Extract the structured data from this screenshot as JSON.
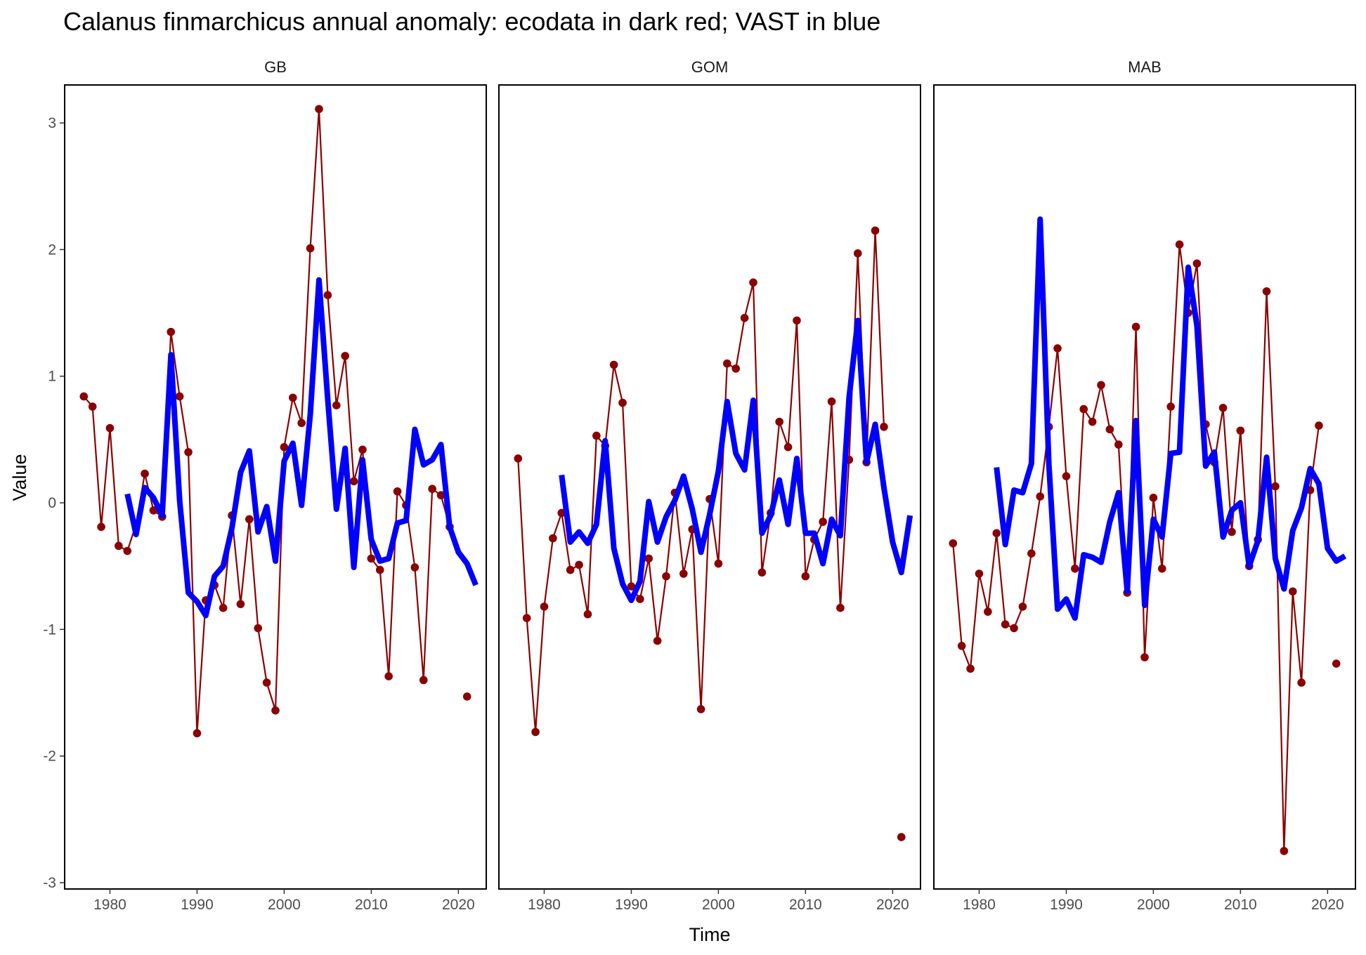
{
  "chart_data": {
    "type": "line",
    "title": "Calanus finmarchicus annual anomaly: ecodata in dark red; VAST in blue",
    "xlabel": "Time",
    "ylabel": "Value",
    "xlim": [
      1974.8,
      2023.2
    ],
    "ylim": [
      -3.05,
      3.3
    ],
    "xticks": [
      1980,
      1990,
      2000,
      2010,
      2020
    ],
    "yticks": [
      -3,
      -2,
      -1,
      0,
      1,
      2,
      3
    ],
    "grid": false,
    "colors": {
      "ecodata": "#8b0000",
      "vast": "#0000ff"
    },
    "panels": [
      {
        "name": "GB",
        "series": [
          {
            "kind": "ecodata",
            "x": [
              1977,
              1978,
              1979,
              1980,
              1981,
              1982,
              1983,
              1984,
              1985,
              1986,
              1987,
              1988,
              1989,
              1990,
              1991,
              1992,
              1993,
              1994,
              1995,
              1996,
              1997,
              1998,
              1999,
              2000,
              2001,
              2002,
              2003,
              2004,
              2005,
              2006,
              2007,
              2008,
              2009,
              2010,
              2011,
              2012,
              2013,
              2014,
              2015,
              2016,
              2017,
              2018,
              2019,
              2021
            ],
            "values": [
              0.84,
              0.76,
              -0.19,
              0.59,
              -0.34,
              -0.38,
              -0.17,
              0.23,
              -0.06,
              -0.11,
              1.35,
              0.84,
              0.4,
              -1.82,
              -0.77,
              -0.65,
              -0.83,
              -0.1,
              -0.8,
              -0.13,
              -0.99,
              -1.42,
              -1.64,
              0.44,
              0.83,
              0.63,
              2.01,
              3.11,
              1.64,
              0.77,
              1.16,
              0.17,
              0.42,
              -0.44,
              -0.53,
              -1.37,
              0.09,
              -0.02,
              -0.51,
              -1.4,
              0.11,
              0.06,
              -0.19,
              -1.53
            ]
          },
          {
            "kind": "vast",
            "x": [
              1982,
              1983,
              1984,
              1985,
              1986,
              1987,
              1988,
              1989,
              1990,
              1991,
              1992,
              1993,
              1994,
              1995,
              1996,
              1997,
              1998,
              1999,
              2000,
              2001,
              2002,
              2003,
              2004,
              2005,
              2006,
              2007,
              2008,
              2009,
              2010,
              2011,
              2012,
              2013,
              2014,
              2015,
              2016,
              2017,
              2018,
              2019,
              2020,
              2021,
              2022
            ],
            "values": [
              0.07,
              -0.25,
              0.12,
              0.04,
              -0.1,
              1.17,
              0.02,
              -0.71,
              -0.78,
              -0.89,
              -0.58,
              -0.5,
              -0.2,
              0.24,
              0.41,
              -0.23,
              -0.03,
              -0.46,
              0.33,
              0.47,
              -0.02,
              0.7,
              1.76,
              0.82,
              -0.05,
              0.43,
              -0.51,
              0.34,
              -0.29,
              -0.46,
              -0.44,
              -0.16,
              -0.14,
              0.58,
              0.3,
              0.34,
              0.46,
              -0.19,
              -0.39,
              -0.48,
              -0.65
            ]
          }
        ]
      },
      {
        "name": "GOM",
        "series": [
          {
            "kind": "ecodata",
            "x": [
              1977,
              1978,
              1979,
              1980,
              1981,
              1982,
              1983,
              1984,
              1985,
              1986,
              1987,
              1988,
              1989,
              1990,
              1991,
              1992,
              1993,
              1994,
              1995,
              1996,
              1997,
              1998,
              1999,
              2000,
              2001,
              2002,
              2003,
              2004,
              2005,
              2006,
              2007,
              2008,
              2009,
              2010,
              2011,
              2012,
              2013,
              2014,
              2015,
              2016,
              2017,
              2018,
              2019,
              2021
            ],
            "values": [
              0.35,
              -0.91,
              -1.81,
              -0.82,
              -0.28,
              -0.08,
              -0.53,
              -0.49,
              -0.88,
              0.53,
              0.45,
              1.09,
              0.79,
              -0.66,
              -0.76,
              -0.44,
              -1.09,
              -0.58,
              0.08,
              -0.56,
              -0.21,
              -1.63,
              0.03,
              -0.48,
              1.1,
              1.06,
              1.46,
              1.74,
              -0.55,
              -0.08,
              0.64,
              0.44,
              1.44,
              -0.58,
              -0.29,
              -0.15,
              0.8,
              -0.83,
              0.34,
              1.97,
              0.32,
              2.15,
              0.6,
              -2.64
            ]
          },
          {
            "kind": "vast",
            "x": [
              1982,
              1983,
              1984,
              1985,
              1986,
              1987,
              1988,
              1989,
              1990,
              1991,
              1992,
              1993,
              1994,
              1995,
              1996,
              1997,
              1998,
              1999,
              2000,
              2001,
              2002,
              2003,
              2004,
              2005,
              2006,
              2007,
              2008,
              2009,
              2010,
              2011,
              2012,
              2013,
              2014,
              2015,
              2016,
              2017,
              2018,
              2019,
              2020,
              2021,
              2022
            ],
            "values": [
              0.22,
              -0.31,
              -0.23,
              -0.32,
              -0.17,
              0.49,
              -0.36,
              -0.64,
              -0.77,
              -0.62,
              0.01,
              -0.31,
              -0.11,
              0.02,
              0.21,
              -0.05,
              -0.39,
              -0.09,
              0.25,
              0.8,
              0.39,
              0.26,
              0.81,
              -0.24,
              -0.1,
              0.18,
              -0.17,
              0.35,
              -0.24,
              -0.24,
              -0.48,
              -0.13,
              -0.26,
              0.83,
              1.44,
              0.32,
              0.62,
              0.12,
              -0.31,
              -0.55,
              -0.1
            ]
          }
        ]
      },
      {
        "name": "MAB",
        "series": [
          {
            "kind": "ecodata",
            "x": [
              1977,
              1978,
              1979,
              1980,
              1981,
              1982,
              1983,
              1984,
              1985,
              1986,
              1987,
              1988,
              1989,
              1990,
              1991,
              1992,
              1993,
              1994,
              1995,
              1996,
              1997,
              1998,
              1999,
              2000,
              2001,
              2002,
              2003,
              2004,
              2005,
              2006,
              2007,
              2008,
              2009,
              2010,
              2011,
              2012,
              2013,
              2014,
              2015,
              2016,
              2017,
              2018,
              2019,
              2021
            ],
            "values": [
              -0.32,
              -1.13,
              -1.31,
              -0.56,
              -0.86,
              -0.24,
              -0.96,
              -0.99,
              -0.82,
              -0.4,
              0.05,
              0.6,
              1.22,
              0.21,
              -0.52,
              0.74,
              0.64,
              0.93,
              0.58,
              0.46,
              -0.71,
              1.39,
              -1.22,
              0.04,
              -0.52,
              0.76,
              2.04,
              1.5,
              1.89,
              0.62,
              0.32,
              0.75,
              -0.23,
              0.57,
              -0.5,
              -0.29,
              1.67,
              0.13,
              -2.75,
              -0.7,
              -1.42,
              0.1,
              0.61,
              -1.27
            ]
          },
          {
            "kind": "vast",
            "x": [
              1982,
              1983,
              1984,
              1985,
              1986,
              1987,
              1988,
              1989,
              1990,
              1991,
              1992,
              1993,
              1994,
              1995,
              1996,
              1997,
              1998,
              1999,
              2000,
              2001,
              2002,
              2003,
              2004,
              2005,
              2006,
              2007,
              2008,
              2009,
              2010,
              2011,
              2012,
              2013,
              2014,
              2015,
              2016,
              2017,
              2018,
              2019,
              2020,
              2021,
              2022
            ],
            "values": [
              0.28,
              -0.33,
              0.1,
              0.08,
              0.31,
              2.24,
              0.31,
              -0.84,
              -0.76,
              -0.91,
              -0.41,
              -0.43,
              -0.47,
              -0.15,
              0.08,
              -0.7,
              0.65,
              -0.81,
              -0.13,
              -0.27,
              0.39,
              0.4,
              1.86,
              1.4,
              0.29,
              0.4,
              -0.27,
              -0.06,
              0.0,
              -0.5,
              -0.3,
              0.36,
              -0.44,
              -0.68,
              -0.22,
              -0.04,
              0.27,
              0.15,
              -0.36,
              -0.46,
              -0.42
            ]
          }
        ]
      }
    ]
  }
}
